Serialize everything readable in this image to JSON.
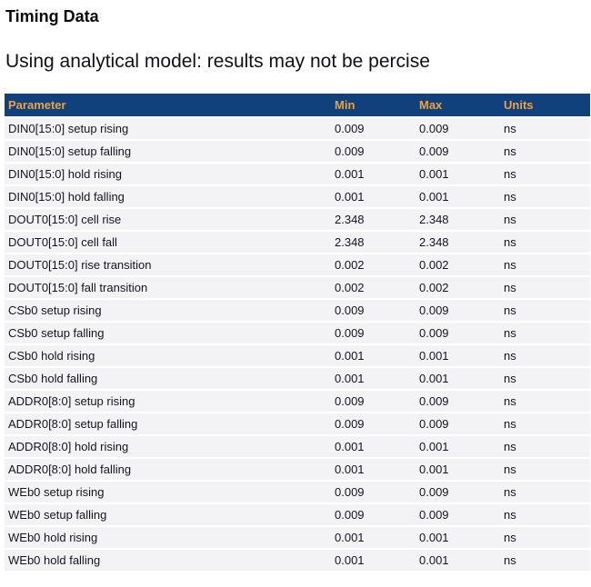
{
  "page": {
    "title": "Timing Data",
    "subtitle": "Using analytical model: results may not be percise"
  },
  "table": {
    "columns": [
      "Parameter",
      "Min",
      "Max",
      "Units"
    ],
    "rows": [
      {
        "parameter": "DIN0[15:0] setup rising",
        "min": "0.009",
        "max": "0.009",
        "units": "ns"
      },
      {
        "parameter": "DIN0[15:0] setup falling",
        "min": "0.009",
        "max": "0.009",
        "units": "ns"
      },
      {
        "parameter": "DIN0[15:0] hold rising",
        "min": "0.001",
        "max": "0.001",
        "units": "ns"
      },
      {
        "parameter": "DIN0[15:0] hold falling",
        "min": "0.001",
        "max": "0.001",
        "units": "ns"
      },
      {
        "parameter": "DOUT0[15:0] cell rise",
        "min": "2.348",
        "max": "2.348",
        "units": "ns"
      },
      {
        "parameter": "DOUT0[15:0] cell fall",
        "min": "2.348",
        "max": "2.348",
        "units": "ns"
      },
      {
        "parameter": "DOUT0[15:0] rise transition",
        "min": "0.002",
        "max": "0.002",
        "units": "ns"
      },
      {
        "parameter": "DOUT0[15:0] fall transition",
        "min": "0.002",
        "max": "0.002",
        "units": "ns"
      },
      {
        "parameter": "CSb0 setup rising",
        "min": "0.009",
        "max": "0.009",
        "units": "ns"
      },
      {
        "parameter": "CSb0 setup falling",
        "min": "0.009",
        "max": "0.009",
        "units": "ns"
      },
      {
        "parameter": "CSb0 hold rising",
        "min": "0.001",
        "max": "0.001",
        "units": "ns"
      },
      {
        "parameter": "CSb0 hold falling",
        "min": "0.001",
        "max": "0.001",
        "units": "ns"
      },
      {
        "parameter": "ADDR0[8:0] setup rising",
        "min": "0.009",
        "max": "0.009",
        "units": "ns"
      },
      {
        "parameter": "ADDR0[8:0] setup falling",
        "min": "0.009",
        "max": "0.009",
        "units": "ns"
      },
      {
        "parameter": "ADDR0[8:0] hold rising",
        "min": "0.001",
        "max": "0.001",
        "units": "ns"
      },
      {
        "parameter": "ADDR0[8:0] hold falling",
        "min": "0.001",
        "max": "0.001",
        "units": "ns"
      },
      {
        "parameter": "WEb0 setup rising",
        "min": "0.009",
        "max": "0.009",
        "units": "ns"
      },
      {
        "parameter": "WEb0 setup falling",
        "min": "0.009",
        "max": "0.009",
        "units": "ns"
      },
      {
        "parameter": "WEb0 hold rising",
        "min": "0.001",
        "max": "0.001",
        "units": "ns"
      },
      {
        "parameter": "WEb0 hold falling",
        "min": "0.001",
        "max": "0.001",
        "units": "ns"
      }
    ]
  },
  "colors": {
    "header_bg": "#11417c",
    "header_text": "#eda23b",
    "row_bg": "#f3f3f6",
    "row_separator": "#ffffff",
    "body_text": "#14141e"
  }
}
